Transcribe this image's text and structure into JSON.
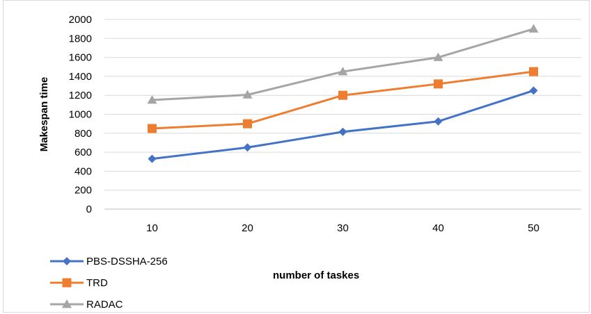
{
  "chart_data": {
    "type": "line",
    "title": "",
    "xlabel": "number of taskes",
    "ylabel": "Makespan time",
    "categories": [
      "10",
      "20",
      "30",
      "40",
      "50"
    ],
    "ylim": [
      0,
      2000
    ],
    "yticks": [
      0,
      200,
      400,
      600,
      800,
      1000,
      1200,
      1400,
      1600,
      1800,
      2000
    ],
    "grid": true,
    "legend_position": "bottom-left",
    "series": [
      {
        "name": "PBS-DSSHA-256",
        "values": [
          530,
          650,
          815,
          925,
          1250
        ],
        "color": "#4472c4",
        "marker": "diamond"
      },
      {
        "name": "TRD",
        "values": [
          850,
          900,
          1200,
          1320,
          1450
        ],
        "color": "#ed7d31",
        "marker": "square"
      },
      {
        "name": "RADAC",
        "values": [
          1150,
          1205,
          1450,
          1600,
          1900
        ],
        "color": "#a5a5a5",
        "marker": "triangle"
      }
    ]
  }
}
